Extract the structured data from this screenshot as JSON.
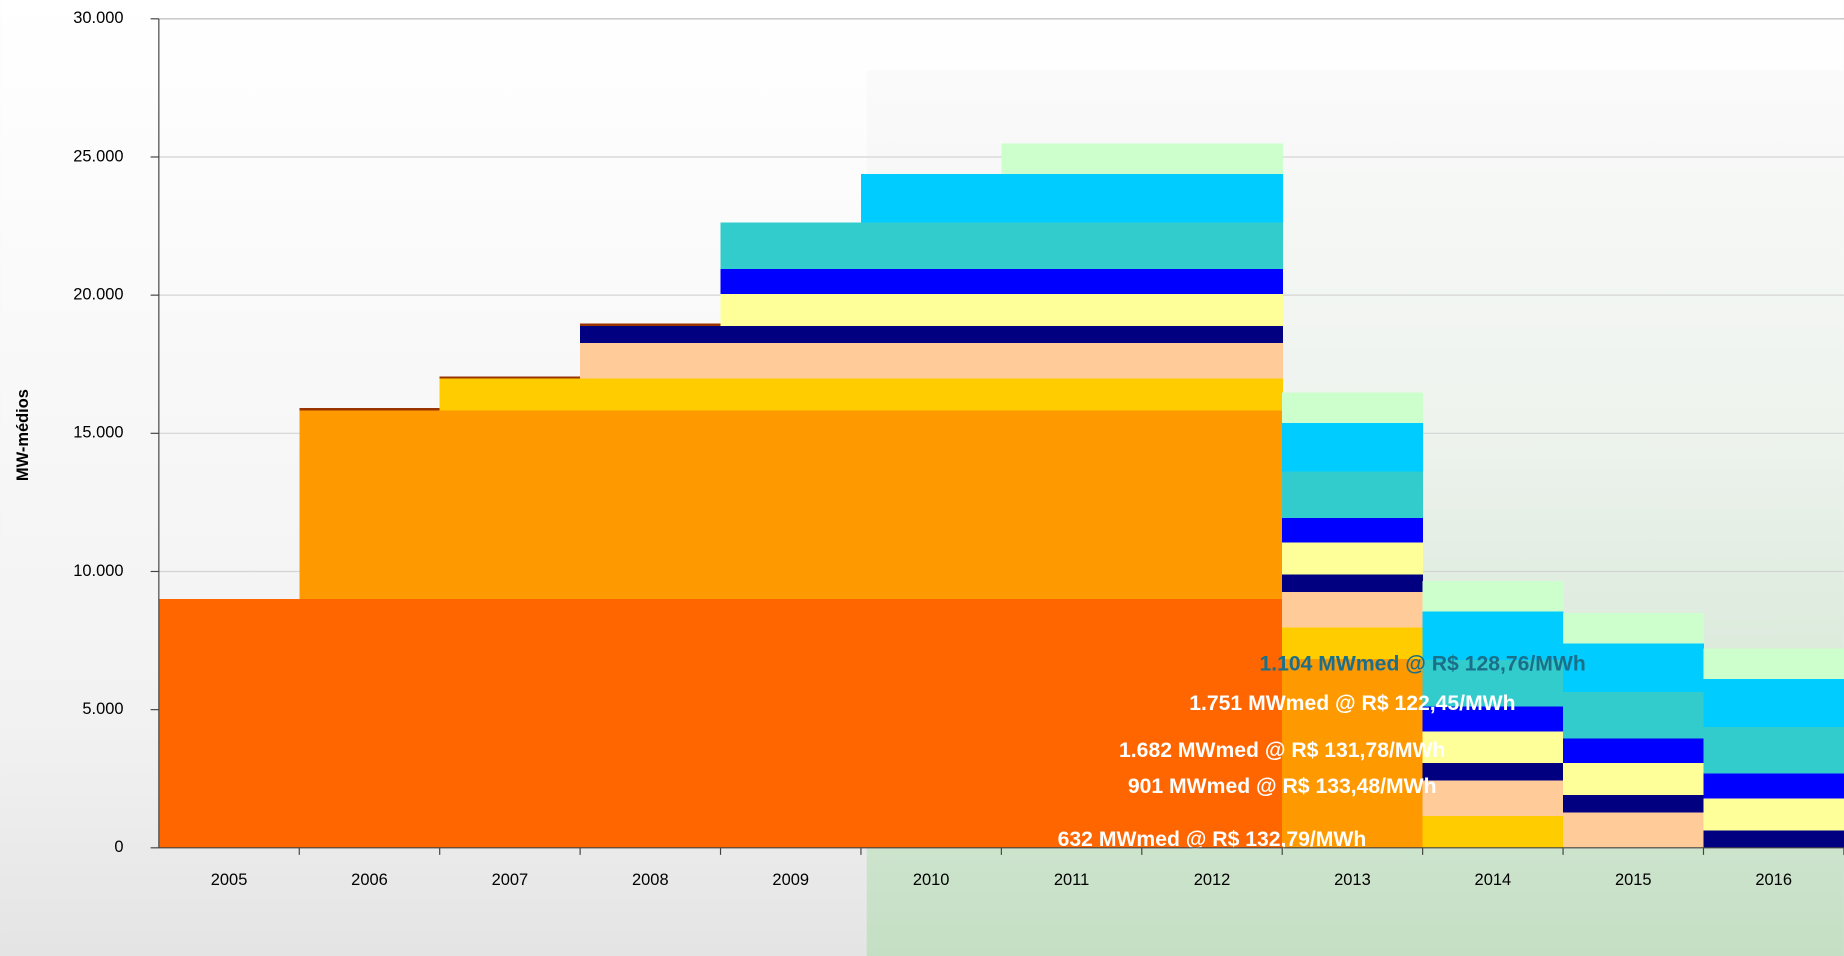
{
  "chart_data": {
    "type": "stacked-bar",
    "y_label": "MW-médios",
    "categories": [
      "2005",
      "2006",
      "2007",
      "2008",
      "2009",
      "2010",
      "2011",
      "2012",
      "2013",
      "2014",
      "2015",
      "2016"
    ],
    "ylim": [
      0,
      30000
    ],
    "yticks": [
      0,
      {
        "value": 5000,
        "label": "5.000"
      },
      {
        "value": 10000,
        "label": "10.000"
      },
      {
        "value": 15000,
        "label": "15.000"
      },
      {
        "value": 20000,
        "label": "20.000"
      },
      {
        "value": 25000,
        "label": "25.000"
      },
      {
        "value": 30000,
        "label": "30.000"
      }
    ],
    "grid": true,
    "series": [
      {
        "color": "#ff6600",
        "values": [
          9000,
          9000,
          9000,
          9000,
          9000,
          9000,
          9000,
          9000,
          null,
          null,
          null,
          null
        ]
      },
      {
        "color": "#ff9900",
        "values": [
          null,
          6830,
          6830,
          6830,
          6830,
          6830,
          6830,
          6830,
          6830,
          null,
          null,
          null
        ]
      },
      {
        "color": "#993300",
        "values": [
          null,
          80,
          null,
          null,
          null,
          null,
          null,
          null,
          null,
          null,
          null,
          null
        ]
      },
      {
        "color": "#ffcc00",
        "values": [
          null,
          null,
          1150,
          1150,
          1150,
          1150,
          1150,
          1150,
          1150,
          1150,
          null,
          null
        ]
      },
      {
        "color": "#993300",
        "values": [
          null,
          null,
          80,
          null,
          null,
          null,
          null,
          null,
          null,
          null,
          null,
          null
        ]
      },
      {
        "color": "#ffcc99",
        "values": [
          null,
          null,
          null,
          1280,
          1280,
          1280,
          1280,
          1280,
          1280,
          1280,
          1280,
          null
        ]
      },
      {
        "color": "#000080",
        "label": "632 MWmed @ R$ 132,79/MWh",
        "label_color": "#ffffff",
        "values": [
          null,
          null,
          null,
          632,
          632,
          632,
          632,
          632,
          632,
          632,
          632,
          632
        ]
      },
      {
        "color": "#993300",
        "values": [
          null,
          null,
          null,
          80,
          null,
          null,
          null,
          null,
          null,
          null,
          null,
          null
        ]
      },
      {
        "color": "#ffff99",
        "values": [
          null,
          null,
          null,
          null,
          1150,
          1150,
          1150,
          1150,
          1150,
          1150,
          1150,
          1150
        ]
      },
      {
        "color": "#0000ff",
        "label": "901 MWmed @ R$ 133,48/MWh",
        "label_color": "#ffffff",
        "values": [
          null,
          null,
          null,
          null,
          901,
          901,
          901,
          901,
          901,
          901,
          901,
          901
        ]
      },
      {
        "color": "#33cccc",
        "label": "1.682 MWmed @ R$ 131,78/MWh",
        "label_color": "#ffffff",
        "values": [
          null,
          null,
          null,
          null,
          1682,
          1682,
          1682,
          1682,
          1682,
          1682,
          1682,
          1682
        ]
      },
      {
        "color": "#00ccff",
        "label": "1.751 MWmed @ R$ 122,45/MWh",
        "label_color": "#ffffff",
        "values": [
          null,
          null,
          null,
          null,
          null,
          1751,
          1751,
          1751,
          1751,
          1751,
          1751,
          1751
        ]
      },
      {
        "color": "#ccffcc",
        "label": "1.104 MWmed @ R$ 128,76/MWh",
        "label_color": "#1a6f8a",
        "values": [
          null,
          null,
          null,
          null,
          null,
          null,
          1104,
          1104,
          1104,
          1104,
          1104,
          1104
        ]
      }
    ]
  }
}
